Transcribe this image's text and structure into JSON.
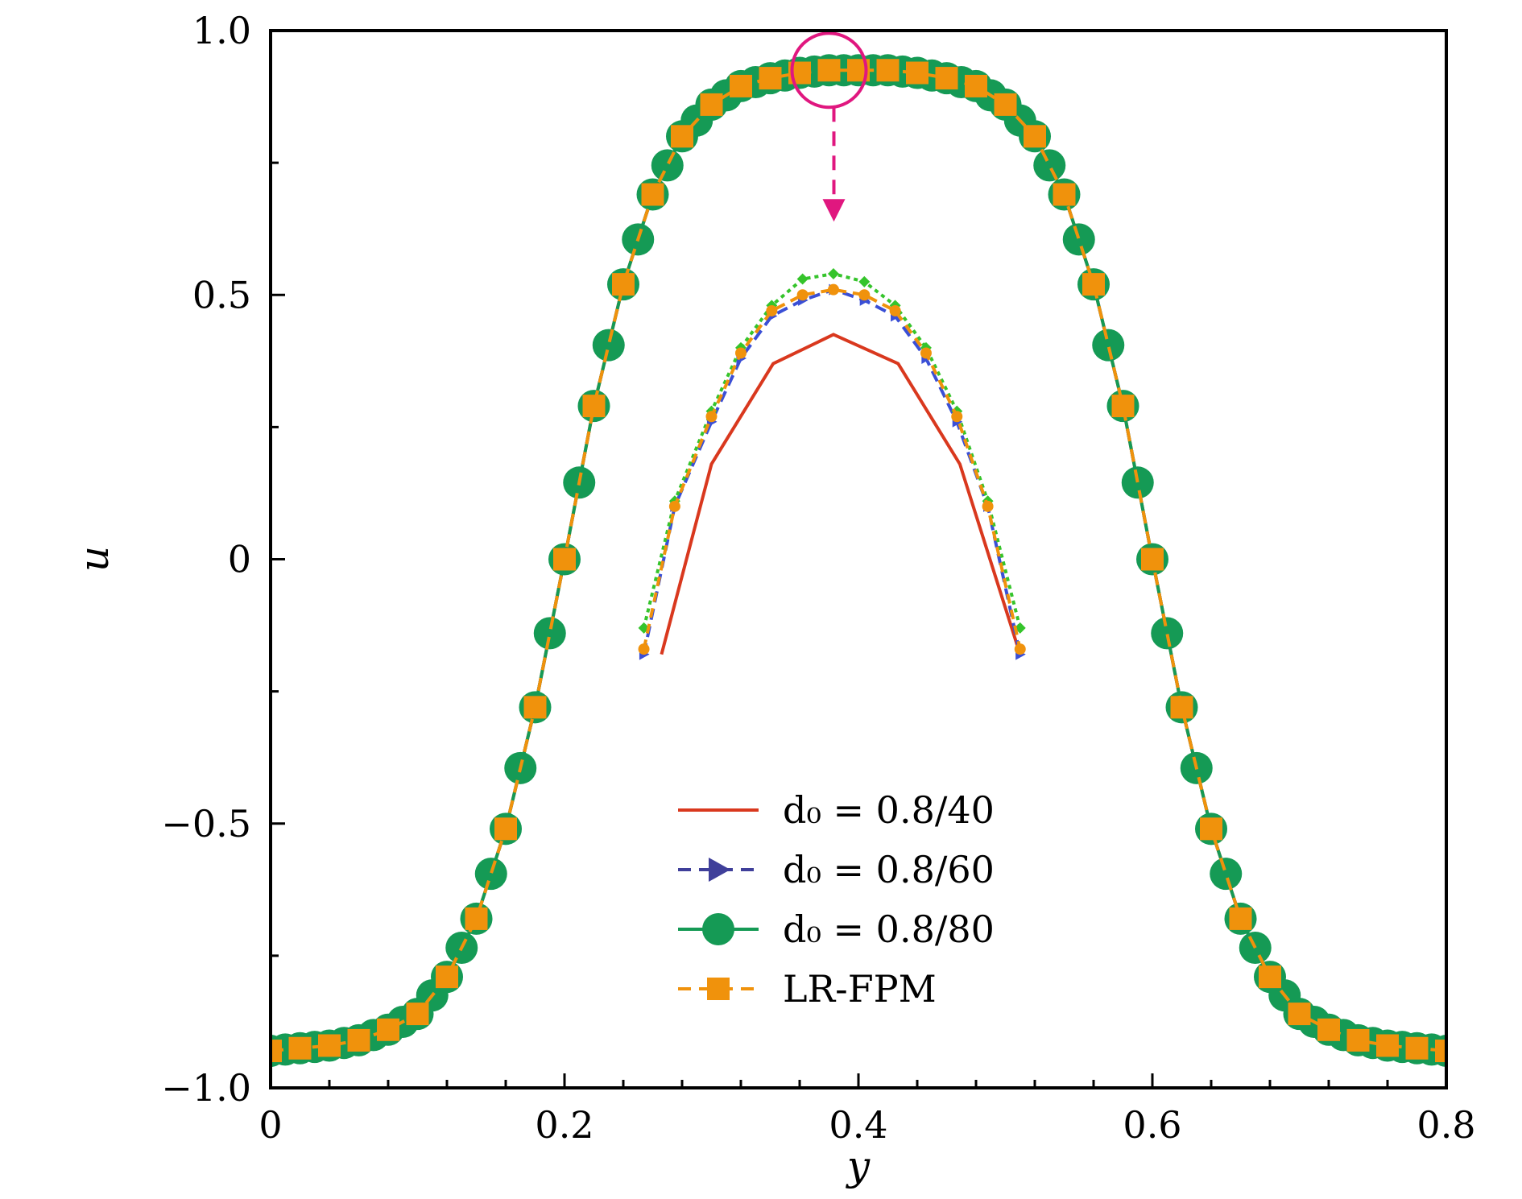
{
  "chart_data": {
    "type": "line",
    "xlabel": "y",
    "ylabel": "u",
    "xlim": [
      0,
      0.8
    ],
    "ylim": [
      -1.0,
      1.0
    ],
    "xticks": [
      0,
      0.2,
      0.4,
      0.6,
      0.8
    ],
    "xtick_labels": [
      "0",
      "0.2",
      "0.4",
      "0.6",
      "0.8"
    ],
    "yticks": [
      -1.0,
      -0.5,
      0,
      0.5,
      1.0
    ],
    "ytick_labels": [
      "−1.0",
      "−0.5",
      "0",
      "0.5",
      "1.0"
    ],
    "grid": false,
    "legend_position": "bottom-center",
    "series": [
      {
        "name": "d₀ = 0.8/40",
        "color": "#d9381e",
        "line": "solid",
        "marker": "none",
        "marker_step": 0
      },
      {
        "name": "d₀ = 0.8/60",
        "color": "#3f3f9a",
        "line": "dashed",
        "marker": "triangle-right",
        "marker_step": 0.02
      },
      {
        "name": "d₀ = 0.8/80",
        "color": "#159a55",
        "line": "solid",
        "marker": "circle",
        "marker_step": 0.01
      },
      {
        "name": "LR-FPM",
        "color": "#f0920c",
        "line": "dashed",
        "marker": "square",
        "marker_step": 0.02
      }
    ],
    "profile": {
      "x": [
        0,
        0.02,
        0.04,
        0.06,
        0.08,
        0.1,
        0.12,
        0.14,
        0.16,
        0.18,
        0.2,
        0.22,
        0.24,
        0.26,
        0.28,
        0.3,
        0.32,
        0.34,
        0.36,
        0.38,
        0.4,
        0.42,
        0.44,
        0.46,
        0.48,
        0.5,
        0.52,
        0.54,
        0.56,
        0.58,
        0.6,
        0.62,
        0.64,
        0.66,
        0.68,
        0.7,
        0.72,
        0.74,
        0.76,
        0.78,
        0.8
      ],
      "y": [
        -0.93,
        -0.925,
        -0.92,
        -0.91,
        -0.89,
        -0.86,
        -0.79,
        -0.68,
        -0.51,
        -0.28,
        0.0,
        0.29,
        0.52,
        0.69,
        0.8,
        0.86,
        0.895,
        0.91,
        0.92,
        0.925,
        0.925,
        0.925,
        0.92,
        0.91,
        0.895,
        0.86,
        0.8,
        0.69,
        0.52,
        0.29,
        0.0,
        -0.28,
        -0.51,
        -0.68,
        -0.79,
        -0.86,
        -0.89,
        -0.91,
        -0.92,
        -0.925,
        -0.93
      ]
    },
    "zoom_annotation": {
      "center": [
        0.38,
        0.925
      ],
      "inset_series": [
        {
          "series": "d₀ = 0.8/40",
          "x": [
            0.266,
            0.3,
            0.342,
            0.383,
            0.427,
            0.469,
            0.51
          ],
          "y": [
            -0.18,
            0.18,
            0.37,
            0.425,
            0.37,
            0.18,
            -0.18
          ]
        },
        {
          "series": "d₀ = 0.8/60",
          "x": [
            0.254,
            0.275,
            0.3,
            0.32,
            0.341,
            0.362,
            0.383,
            0.404,
            0.425,
            0.446,
            0.467,
            0.488,
            0.51
          ],
          "y": [
            -0.18,
            0.1,
            0.26,
            0.38,
            0.46,
            0.49,
            0.51,
            0.49,
            0.46,
            0.38,
            0.26,
            0.1,
            -0.18
          ]
        },
        {
          "series": "d₀ = 0.8/80",
          "x": [
            0.254,
            0.275,
            0.3,
            0.32,
            0.341,
            0.362,
            0.383,
            0.404,
            0.425,
            0.446,
            0.467,
            0.488,
            0.51
          ],
          "y": [
            -0.13,
            0.11,
            0.28,
            0.4,
            0.48,
            0.53,
            0.54,
            0.525,
            0.48,
            0.4,
            0.28,
            0.11,
            -0.13
          ]
        },
        {
          "series": "LR-FPM",
          "x": [
            0.254,
            0.275,
            0.3,
            0.32,
            0.341,
            0.362,
            0.383,
            0.404,
            0.425,
            0.446,
            0.467,
            0.488,
            0.51
          ],
          "y": [
            -0.17,
            0.1,
            0.27,
            0.39,
            0.47,
            0.5,
            0.51,
            0.5,
            0.47,
            0.39,
            0.27,
            0.1,
            -0.17
          ]
        }
      ],
      "color": "#e0177f"
    }
  }
}
